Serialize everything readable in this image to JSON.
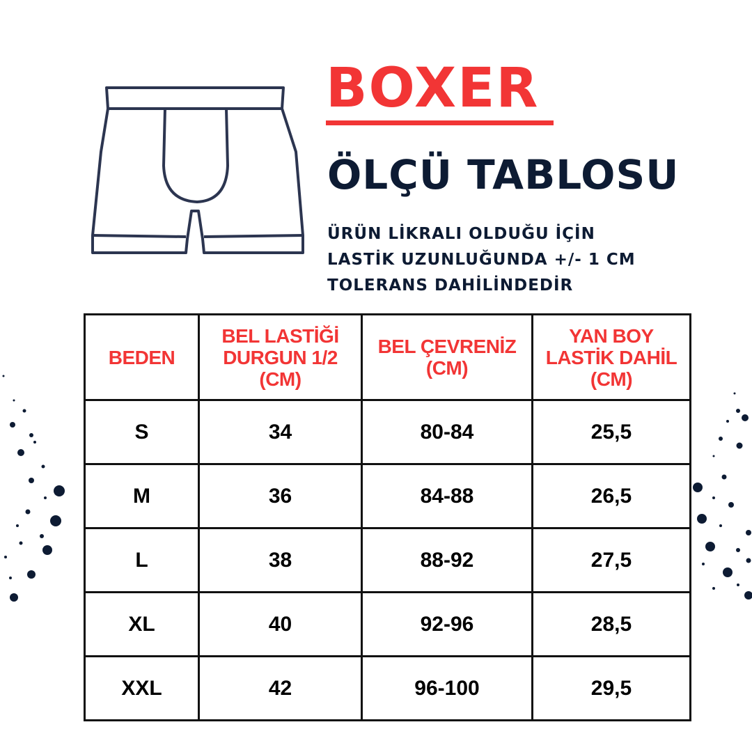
{
  "header": {
    "title": "BOXER",
    "subtitle": "ÖLÇÜ TABLOSU",
    "note_lines": [
      "ÜRÜN LİKRALI OLDUĞU İÇİN",
      "LASTİK UZUNLUĞUNDA +/- 1 CM",
      "TOLERANS DAHİLİNDEDİR"
    ]
  },
  "illustration": {
    "icon": "boxer-shorts-outline-icon"
  },
  "colors": {
    "accent": "#f23535",
    "navy": "#0d1b33"
  },
  "table": {
    "headers": [
      [
        "BEDEN"
      ],
      [
        "BEL LASTİĞİ",
        "DURGUN 1/2",
        "(CM)"
      ],
      [
        "BEL ÇEVRENİZ",
        "(CM)"
      ],
      [
        "YAN BOY",
        "LASTİK DAHİL",
        "(CM)"
      ]
    ],
    "rows": [
      [
        "S",
        "34",
        "80-84",
        "25,5"
      ],
      [
        "M",
        "36",
        "84-88",
        "26,5"
      ],
      [
        "L",
        "38",
        "88-92",
        "27,5"
      ],
      [
        "XL",
        "40",
        "92-96",
        "28,5"
      ],
      [
        "XXL",
        "42",
        "96-100",
        "29,5"
      ]
    ]
  }
}
